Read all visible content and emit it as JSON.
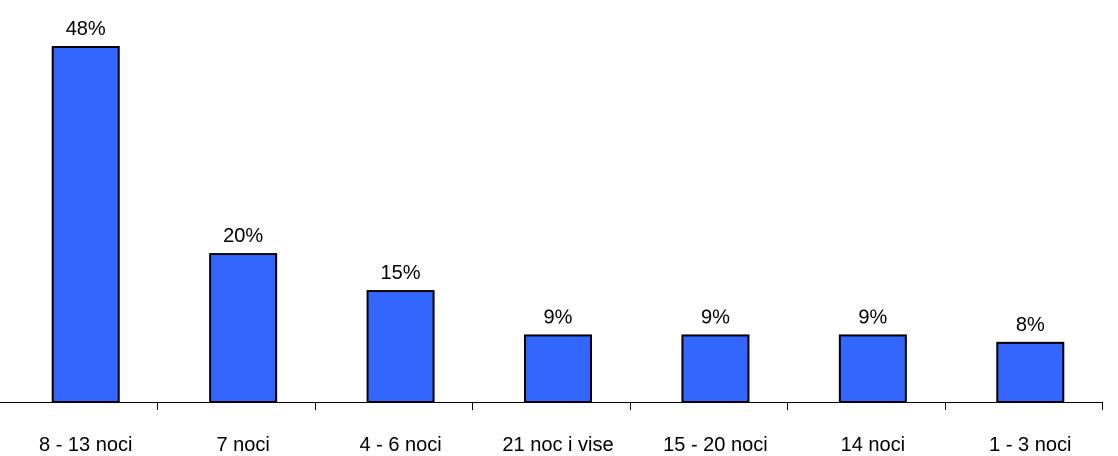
{
  "chart_data": {
    "type": "bar",
    "categories": [
      "8 - 13 noci",
      "7 noci",
      "4 - 6 noci",
      "21 noc i vise",
      "15 - 20 noci",
      "14 noci",
      "1 - 3 noci"
    ],
    "values": [
      48,
      20,
      15,
      9,
      9,
      9,
      8
    ],
    "value_labels": [
      "48%",
      "20%",
      "15%",
      "9%",
      "9%",
      "9%",
      "8%"
    ],
    "title": "",
    "xlabel": "",
    "ylabel": "",
    "ylim": [
      0,
      48
    ],
    "grid": false,
    "legend": "none",
    "bar_color": "#3366ff"
  }
}
